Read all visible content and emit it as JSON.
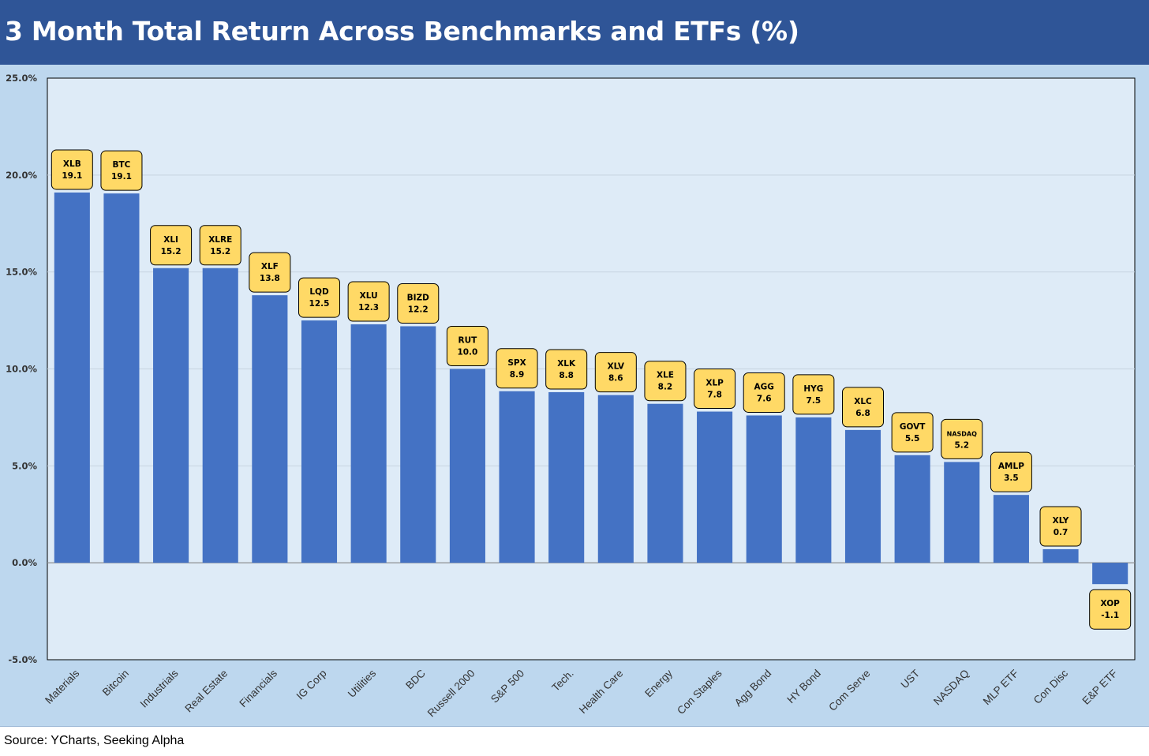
{
  "title": "3 Month Total Return Across Benchmarks and ETFs (%)",
  "source": "Source: YCharts, Seeking Alpha",
  "colors": {
    "title_bar": "#2f5597",
    "frame": "#bdd7ee",
    "plot_bg": "#deebf7",
    "bar": "#4472c4",
    "label_box": "#ffd966",
    "grid": "#c6d3e0"
  },
  "chart_data": {
    "type": "bar",
    "title": "3 Month Total Return Across Benchmarks and ETFs (%)",
    "xlabel": "",
    "ylabel": "",
    "ylim": [
      -5.0,
      25.0
    ],
    "yticks": [
      -5.0,
      0.0,
      5.0,
      10.0,
      15.0,
      20.0,
      25.0
    ],
    "ytick_labels": [
      "-5.0%",
      "0.0%",
      "5.0%",
      "10.0%",
      "15.0%",
      "20.0%",
      "25.0%"
    ],
    "grid": true,
    "legend": "none",
    "categories": [
      "Materials",
      "Bitcoin",
      "Industrials",
      "Real Estate",
      "Financials",
      "IG Corp",
      "Utilities",
      "BDC",
      "Russell 2000",
      "S&P 500",
      "Tech.",
      "Health Care",
      "Energy",
      "Con Staples",
      "Agg Bond",
      "HY Bond",
      "Com Serve",
      "UST",
      "NASDAQ",
      "MLP ETF",
      "Con Disc",
      "E&P ETF"
    ],
    "tickers": [
      "XLB",
      "BTC",
      "XLI",
      "XLRE",
      "XLF",
      "LQD",
      "XLU",
      "BIZD",
      "RUT",
      "SPX",
      "XLK",
      "XLV",
      "XLE",
      "XLP",
      "AGG",
      "HYG",
      "XLC",
      "GOVT",
      "NASDAQ",
      "AMLP",
      "XLY",
      "XOP"
    ],
    "value_labels": [
      "19.1",
      "19.1",
      "15.2",
      "15.2",
      "13.8",
      "12.5",
      "12.3",
      "12.2",
      "10.0",
      "8.9",
      "8.8",
      "8.6",
      "8.2",
      "7.8",
      "7.6",
      "7.5",
      "6.8",
      "5.5",
      "5.2",
      "3.5",
      "0.7",
      "-1.1"
    ],
    "values": [
      19.1,
      19.05,
      15.2,
      15.2,
      13.8,
      12.5,
      12.3,
      12.2,
      10.0,
      8.85,
      8.8,
      8.65,
      8.2,
      7.8,
      7.6,
      7.5,
      6.85,
      5.55,
      5.2,
      3.5,
      0.7,
      -1.1
    ]
  }
}
